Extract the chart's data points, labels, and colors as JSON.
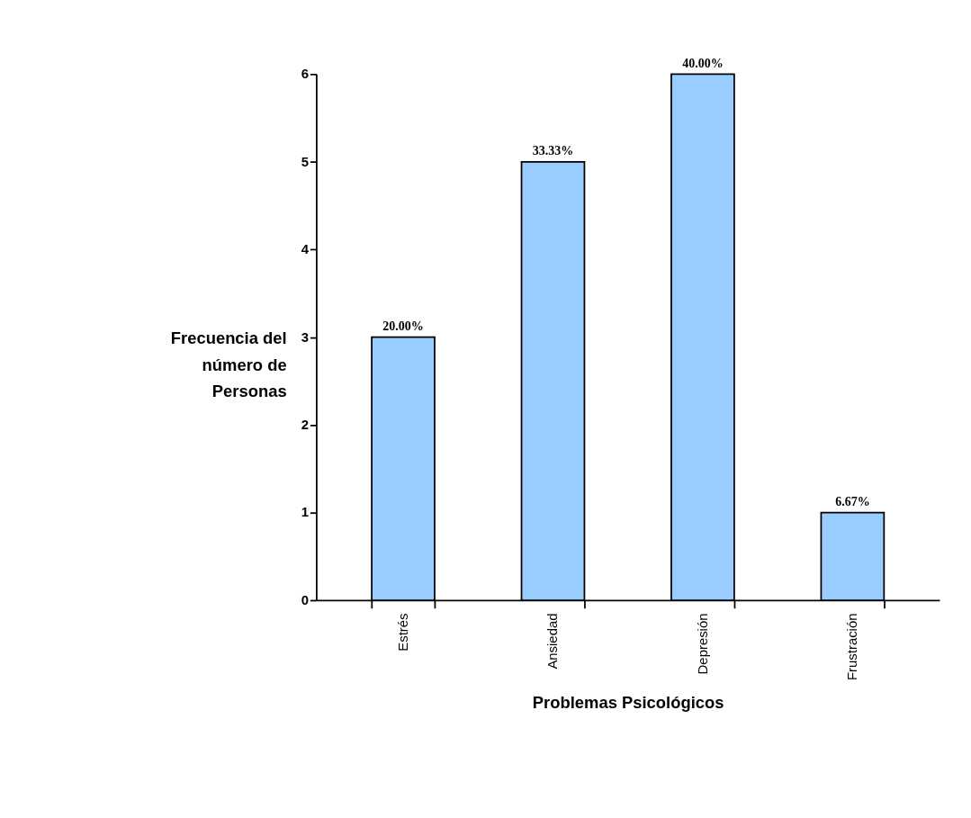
{
  "chart_data": {
    "type": "bar",
    "xlabel": "Problemas Psicológicos",
    "ylabel": "Frecuencia del número de Personas",
    "categories": [
      "Estrés",
      "Ansiedad",
      "Depresión",
      "Frustración"
    ],
    "values": [
      3,
      5,
      6,
      1
    ],
    "annotations": [
      {
        "text": "20.00%",
        "x": "Estrés",
        "y": 3
      },
      {
        "text": "33.33%",
        "x": "Ansiedad",
        "y": 5
      },
      {
        "text": "40.00%",
        "x": "Depresión",
        "y": 6
      },
      {
        "text": "6.67%",
        "x": "Frustración",
        "y": 1
      }
    ],
    "color": "#99ccff",
    "ylim": [
      0,
      6
    ],
    "yticks": [
      0,
      1,
      2,
      3,
      4,
      5,
      6
    ],
    "grid": false
  }
}
